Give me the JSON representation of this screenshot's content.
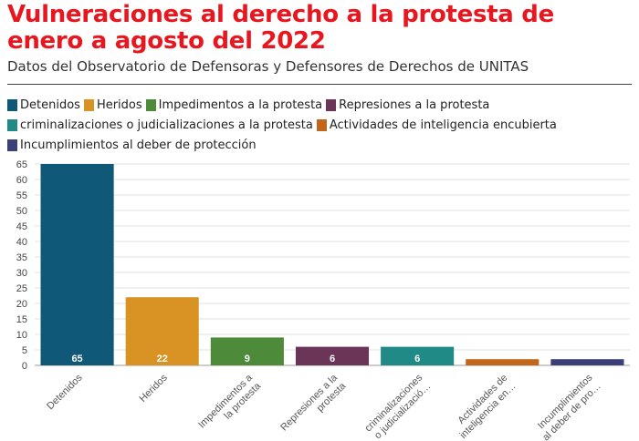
{
  "header": {
    "title": "Vulneraciones al derecho a la protesta de enero a agosto del 2022",
    "subtitle": "Datos del Observatorio de Defensoras y Defensores de Derechos de UNITAS"
  },
  "legend": {
    "rows": [
      [
        {
          "label": "Detenidos",
          "color": "#0f5877"
        },
        {
          "label": "Heridos",
          "color": "#d99224"
        },
        {
          "label": "Impedimentos a la protesta",
          "color": "#4d8a3a"
        },
        {
          "label": "Represiones a la protesta",
          "color": "#6b3557"
        }
      ],
      [
        {
          "label": "criminalizaciones o judicializaciones a la protesta",
          "color": "#1f8a86"
        },
        {
          "label": "Actividades de inteligencia encubierta",
          "color": "#c2661b"
        }
      ],
      [
        {
          "label": "Incumplimientos al deber de protección",
          "color": "#3d3f78"
        }
      ]
    ]
  },
  "chart_data": {
    "type": "bar",
    "categories": [
      "Detenidos",
      "Heridos",
      "Impedimentos a la protesta",
      "Represiones a la protesta",
      "criminalizaciones o judicializaciones a la protesta",
      "Actividades de inteligencia encubierta",
      "Incumplimientos al deber de protección"
    ],
    "tick_labels": [
      [
        "Detenidos"
      ],
      [
        "Heridos"
      ],
      [
        "Impedimentos a",
        "la protesta"
      ],
      [
        "Represiones a la",
        "protesta"
      ],
      [
        "criminalizaciones",
        "o judicializació…"
      ],
      [
        "Actividades de",
        "inteligencia en…"
      ],
      [
        "Incumplimientos",
        "al deber de pro…"
      ]
    ],
    "values": [
      65,
      22,
      9,
      6,
      6,
      2,
      2
    ],
    "data_labels": [
      "65",
      "22",
      "9",
      "6",
      "6",
      "",
      ""
    ],
    "colors": [
      "#0f5877",
      "#d99224",
      "#4d8a3a",
      "#6b3557",
      "#1f8a86",
      "#c2661b",
      "#3d3f78"
    ],
    "ylim": [
      0,
      65
    ],
    "yticks": [
      0,
      5,
      10,
      15,
      20,
      25,
      30,
      35,
      40,
      45,
      50,
      55,
      60,
      65
    ],
    "xlabel": "",
    "ylabel": "",
    "grid": true
  }
}
